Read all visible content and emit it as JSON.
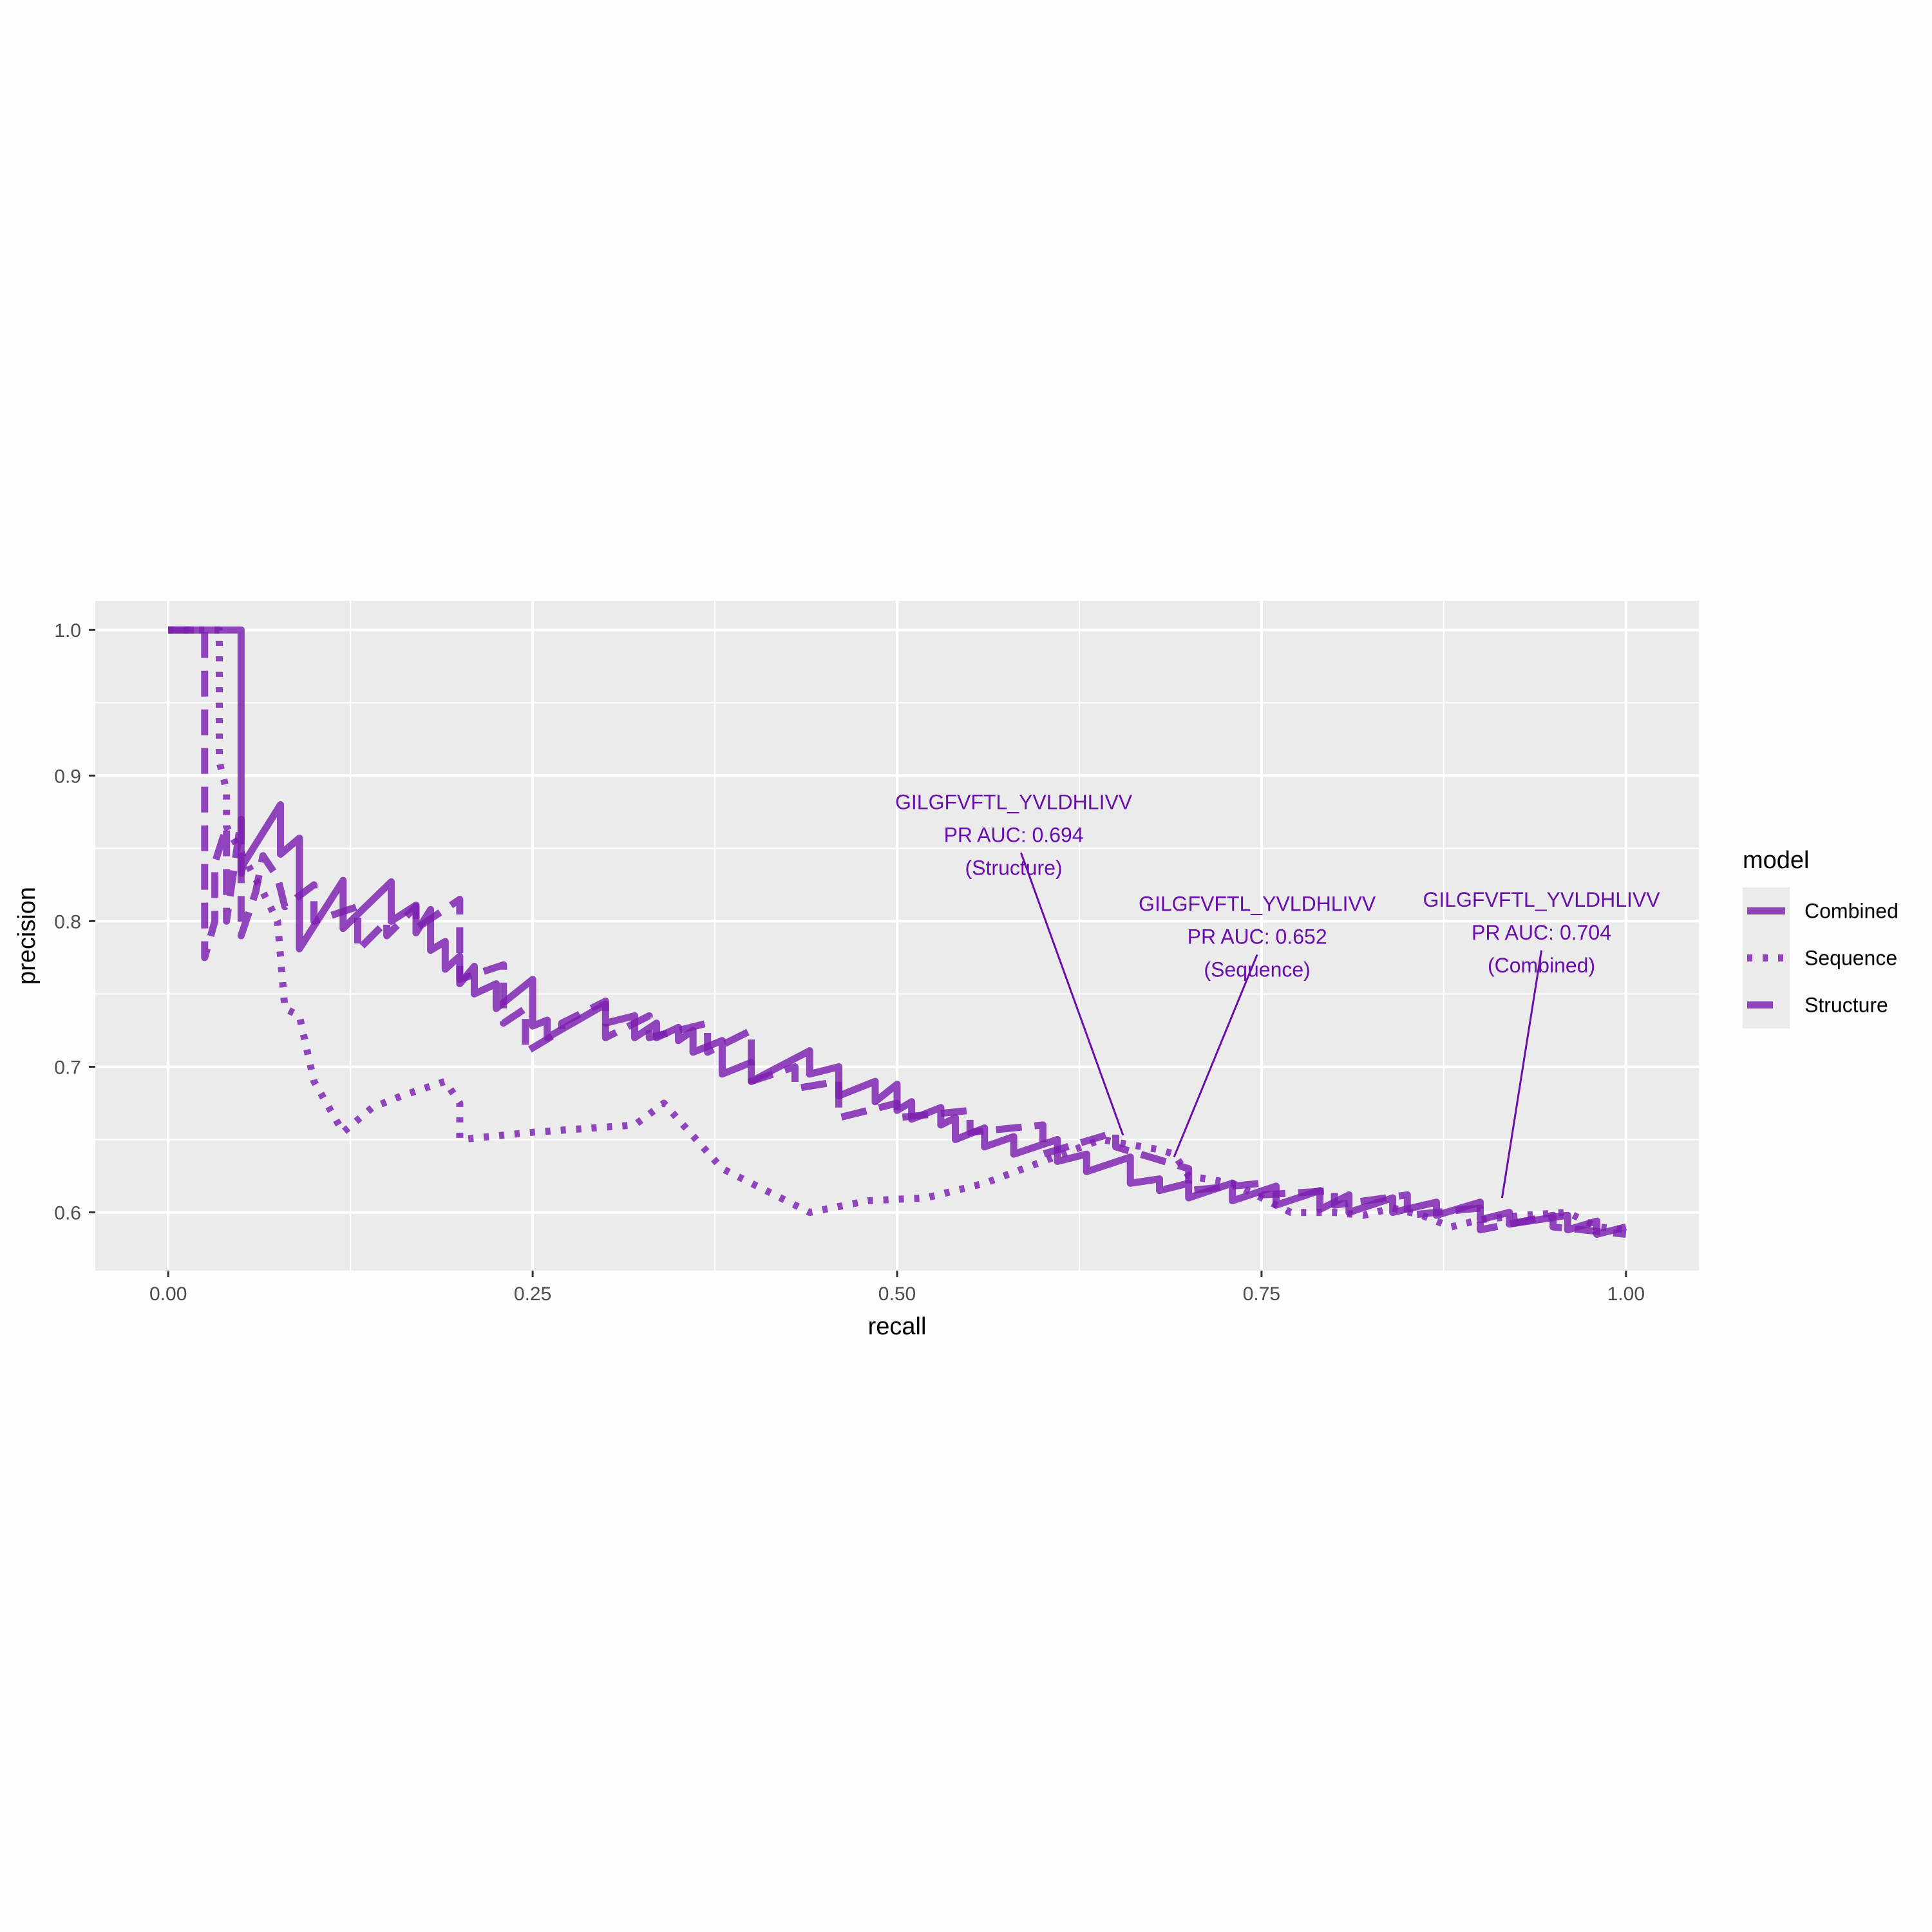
{
  "colors": {
    "panel_bg": "#ebebeb",
    "grid": "#ffffff",
    "series": "#7b1fb0",
    "annotation": "#6a0dad"
  },
  "chart_data": {
    "type": "line",
    "xlabel": "recall",
    "ylabel": "precision",
    "xlim": [
      -0.05,
      1.05
    ],
    "ylim": [
      0.56,
      1.02
    ],
    "x_ticks": [
      0,
      0.25,
      0.5,
      0.75,
      1
    ],
    "x_tick_labels": [
      "0.00",
      "0.25",
      "0.50",
      "0.75",
      "1.00"
    ],
    "y_ticks": [
      0.6,
      0.7,
      0.8,
      0.9,
      1.0
    ],
    "y_tick_labels": [
      "0.6",
      "0.7",
      "0.8",
      "0.9",
      "1.0"
    ],
    "grid": true,
    "legend": {
      "title": "model",
      "position": "right",
      "entries": [
        "Combined",
        "Sequence",
        "Structure"
      ]
    },
    "series": [
      {
        "name": "Combined",
        "linetype": "solid",
        "x": [
          0.0,
          0.05,
          0.05,
          0.052,
          0.077,
          0.077,
          0.09,
          0.09,
          0.12,
          0.12,
          0.153,
          0.153,
          0.17,
          0.17,
          0.18,
          0.18,
          0.19,
          0.19,
          0.2,
          0.2,
          0.21,
          0.21,
          0.225,
          0.225,
          0.25,
          0.25,
          0.26,
          0.26,
          0.3,
          0.3,
          0.32,
          0.32,
          0.335,
          0.335,
          0.35,
          0.35,
          0.36,
          0.36,
          0.38,
          0.38,
          0.4,
          0.4,
          0.44,
          0.44,
          0.46,
          0.46,
          0.485,
          0.485,
          0.5,
          0.5,
          0.51,
          0.51,
          0.53,
          0.53,
          0.54,
          0.54,
          0.56,
          0.56,
          0.58,
          0.58,
          0.61,
          0.61,
          0.63,
          0.63,
          0.66,
          0.66,
          0.68,
          0.68,
          0.7,
          0.7,
          0.73,
          0.73,
          0.76,
          0.76,
          0.79,
          0.79,
          0.81,
          0.81,
          0.84,
          0.84,
          0.87,
          0.87,
          0.9,
          0.9,
          0.92,
          0.92,
          0.96,
          0.96,
          0.98,
          0.98,
          1.0
        ],
        "y": [
          1.0,
          1.0,
          0.833,
          0.84,
          0.88,
          0.846,
          0.857,
          0.781,
          0.828,
          0.795,
          0.827,
          0.8,
          0.811,
          0.792,
          0.808,
          0.78,
          0.786,
          0.767,
          0.776,
          0.757,
          0.769,
          0.75,
          0.757,
          0.74,
          0.76,
          0.728,
          0.732,
          0.72,
          0.743,
          0.73,
          0.735,
          0.72,
          0.73,
          0.72,
          0.727,
          0.718,
          0.725,
          0.71,
          0.718,
          0.695,
          0.703,
          0.69,
          0.711,
          0.695,
          0.7,
          0.68,
          0.69,
          0.676,
          0.688,
          0.67,
          0.676,
          0.664,
          0.672,
          0.66,
          0.665,
          0.65,
          0.658,
          0.645,
          0.652,
          0.64,
          0.65,
          0.635,
          0.64,
          0.628,
          0.638,
          0.62,
          0.623,
          0.615,
          0.62,
          0.61,
          0.62,
          0.608,
          0.618,
          0.605,
          0.615,
          0.602,
          0.612,
          0.6,
          0.61,
          0.6,
          0.607,
          0.598,
          0.607,
          0.595,
          0.6,
          0.592,
          0.598,
          0.588,
          0.594,
          0.585,
          0.59
        ]
      },
      {
        "name": "Sequence",
        "linetype": "dotted",
        "x": [
          0.0,
          0.035,
          0.035,
          0.04,
          0.04,
          0.065,
          0.075,
          0.08,
          0.09,
          0.1,
          0.12,
          0.14,
          0.16,
          0.19,
          0.2,
          0.2,
          0.25,
          0.32,
          0.34,
          0.38,
          0.44,
          0.48,
          0.52,
          0.56,
          0.6,
          0.64,
          0.68,
          0.69,
          0.7,
          0.73,
          0.77,
          0.8,
          0.82,
          0.84,
          0.86,
          0.88,
          0.9,
          0.93,
          0.96,
          0.98,
          1.0
        ],
        "y": [
          1.0,
          1.0,
          0.91,
          0.89,
          0.865,
          0.82,
          0.8,
          0.74,
          0.735,
          0.69,
          0.655,
          0.672,
          0.68,
          0.69,
          0.675,
          0.65,
          0.655,
          0.66,
          0.675,
          0.63,
          0.6,
          0.608,
          0.61,
          0.62,
          0.635,
          0.65,
          0.643,
          0.64,
          0.625,
          0.62,
          0.6,
          0.6,
          0.598,
          0.603,
          0.598,
          0.59,
          0.595,
          0.598,
          0.6,
          0.59,
          0.588
        ]
      },
      {
        "name": "Structure",
        "linetype": "dashed",
        "x": [
          0.0,
          0.025,
          0.025,
          0.032,
          0.032,
          0.04,
          0.04,
          0.05,
          0.05,
          0.06,
          0.065,
          0.075,
          0.08,
          0.1,
          0.1,
          0.13,
          0.13,
          0.15,
          0.15,
          0.17,
          0.17,
          0.2,
          0.2,
          0.23,
          0.23,
          0.245,
          0.245,
          0.27,
          0.27,
          0.3,
          0.3,
          0.33,
          0.33,
          0.37,
          0.37,
          0.4,
          0.4,
          0.43,
          0.43,
          0.46,
          0.46,
          0.5,
          0.5,
          0.55,
          0.55,
          0.6,
          0.6,
          0.65,
          0.65,
          0.7,
          0.7,
          0.75,
          0.75,
          0.8,
          0.8,
          0.85,
          0.85,
          0.9,
          0.9,
          0.95,
          0.95,
          1.0
        ],
        "y": [
          1.0,
          1.0,
          0.775,
          0.8,
          0.84,
          0.865,
          0.8,
          0.87,
          0.79,
          0.82,
          0.845,
          0.83,
          0.81,
          0.825,
          0.8,
          0.81,
          0.78,
          0.8,
          0.79,
          0.81,
          0.795,
          0.815,
          0.76,
          0.77,
          0.73,
          0.74,
          0.71,
          0.725,
          0.73,
          0.745,
          0.72,
          0.735,
          0.72,
          0.73,
          0.71,
          0.725,
          0.69,
          0.7,
          0.685,
          0.69,
          0.665,
          0.675,
          0.665,
          0.67,
          0.655,
          0.66,
          0.64,
          0.655,
          0.645,
          0.63,
          0.615,
          0.62,
          0.612,
          0.615,
          0.605,
          0.612,
          0.598,
          0.603,
          0.588,
          0.598,
          0.59,
          0.585
        ]
      }
    ],
    "annotations": [
      {
        "lines": [
          "GILGFVFTL_YVLDHLIVV",
          "PR AUC: 0.694",
          "(Structure)"
        ],
        "text_x": 0.58,
        "text_y": 0.877,
        "arrow_start": [
          0.585,
          0.847
        ],
        "arrow_end": [
          0.655,
          0.653
        ]
      },
      {
        "lines": [
          "GILGFVFTL_YVLDHLIVV",
          "PR AUC: 0.652",
          "(Sequence)"
        ],
        "text_x": 0.747,
        "text_y": 0.807,
        "arrow_start": [
          0.747,
          0.777
        ],
        "arrow_end": [
          0.69,
          0.638
        ]
      },
      {
        "lines": [
          "GILGFVFTL_YVLDHLIVV",
          "PR AUC: 0.704",
          "(Combined)"
        ],
        "text_x": 0.942,
        "text_y": 0.81,
        "arrow_start": [
          0.942,
          0.78
        ],
        "arrow_end": [
          0.915,
          0.61
        ]
      }
    ]
  }
}
